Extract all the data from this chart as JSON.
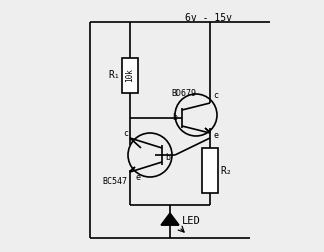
{
  "bg_color": "#eeeeee",
  "line_color": "#000000",
  "text_color": "#000000",
  "voltage_label": "6v - 15v",
  "r1_label": "R₁",
  "r1_val": "10k",
  "r2_label": "R₂",
  "bd679_label": "BD679",
  "bc547_label": "BC547",
  "led_label": "LED",
  "figsize": [
    3.24,
    2.52
  ],
  "dpi": 100
}
